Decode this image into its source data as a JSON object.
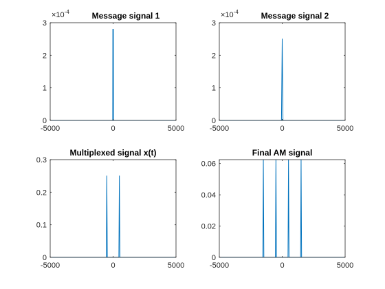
{
  "figure": {
    "background": "#ffffff",
    "line_color": "#0072BD",
    "axis_color": "#262626"
  },
  "chart_data": [
    {
      "type": "line",
      "title": "Message signal 1",
      "xlim": [
        -5000,
        5000
      ],
      "ylim": [
        0,
        0.0003
      ],
      "xticks": [
        -5000,
        0,
        5000
      ],
      "xtick_labels": [
        "-5000",
        "0",
        "5000"
      ],
      "yticks": [
        0,
        0.0001,
        0.0002,
        0.0003
      ],
      "ytick_labels": [
        "0",
        "1",
        "2",
        "3"
      ],
      "y_exponent": {
        "base": "×10",
        "power": "-4"
      },
      "series": [
        {
          "x": [
            -5000,
            -30,
            -20,
            20,
            30,
            5000
          ],
          "y": [
            0,
            0,
            0.00028,
            0.00028,
            0,
            0
          ]
        }
      ]
    },
    {
      "type": "line",
      "title": "Message signal 2",
      "xlim": [
        -5000,
        5000
      ],
      "ylim": [
        0,
        0.0003
      ],
      "xticks": [
        -5000,
        0,
        5000
      ],
      "xtick_labels": [
        "-5000",
        "0",
        "5000"
      ],
      "yticks": [
        0,
        0.0001,
        0.0002,
        0.0003
      ],
      "ytick_labels": [
        "0",
        "1",
        "2",
        "3"
      ],
      "y_exponent": {
        "base": "×10",
        "power": "-4"
      },
      "series": [
        {
          "x": [
            -5000,
            -60,
            0,
            60,
            5000
          ],
          "y": [
            0,
            0,
            0.00025,
            0,
            0
          ]
        }
      ]
    },
    {
      "type": "line",
      "title": "Multiplexed signal x(t)",
      "xlim": [
        -5000,
        5000
      ],
      "ylim": [
        0,
        0.3
      ],
      "xticks": [
        -5000,
        0,
        5000
      ],
      "xtick_labels": [
        "-5000",
        "0",
        "5000"
      ],
      "yticks": [
        0,
        0.1,
        0.2,
        0.3
      ],
      "ytick_labels": [
        "0",
        "0.1",
        "0.2",
        "0.3"
      ],
      "series": [
        {
          "x": [
            -5000,
            -540,
            -500,
            -460,
            460,
            500,
            540,
            5000
          ],
          "y": [
            0,
            0,
            0.25,
            0,
            0,
            0.25,
            0,
            0
          ]
        }
      ]
    },
    {
      "type": "line",
      "title": "Final AM signal",
      "xlim": [
        -5000,
        5000
      ],
      "ylim": [
        0,
        0.0625
      ],
      "xticks": [
        -5000,
        0,
        5000
      ],
      "xtick_labels": [
        "-5000",
        "0",
        "5000"
      ],
      "yticks": [
        0,
        0.02,
        0.04,
        0.06
      ],
      "ytick_labels": [
        "0",
        "0.02",
        "0.04",
        "0.06"
      ],
      "series": [
        {
          "x": [
            -5000,
            -1540,
            -1500,
            -1460,
            -540,
            -500,
            -460,
            460,
            500,
            540,
            1460,
            1500,
            1540,
            5000
          ],
          "y": [
            0,
            0,
            0.0625,
            0,
            0,
            0.0625,
            0,
            0,
            0.0625,
            0,
            0,
            0.0625,
            0,
            0
          ]
        }
      ]
    }
  ]
}
